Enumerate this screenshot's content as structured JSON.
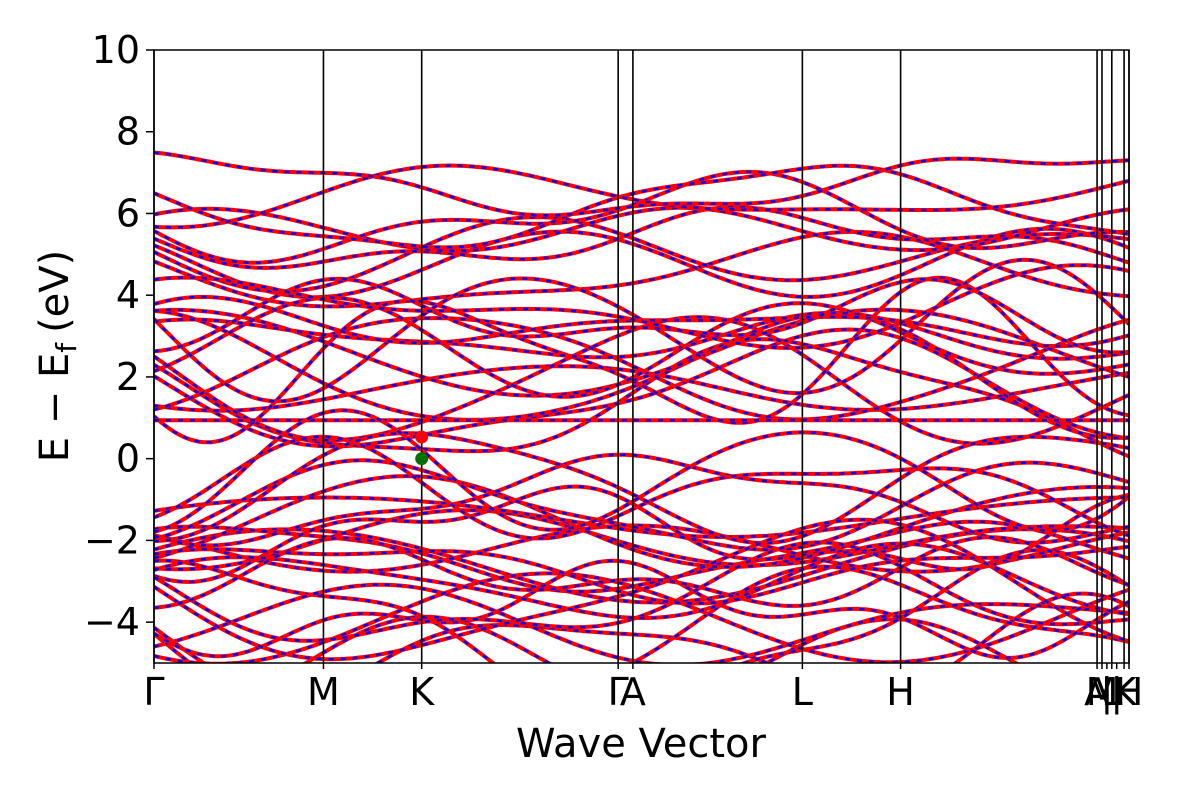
{
  "chart_data": {
    "type": "line",
    "title": "",
    "xlabel": "Wave Vector",
    "ylabel": "E − E",
    "ylabel_subscript": "f",
    "ylabel_unit": "(eV)",
    "ylim": [
      -5,
      10
    ],
    "yticks": [
      {
        "value": -4,
        "label": "−4"
      },
      {
        "value": -2,
        "label": "−2"
      },
      {
        "value": 0,
        "label": "0"
      },
      {
        "value": 2,
        "label": "2"
      },
      {
        "value": 4,
        "label": "4"
      },
      {
        "value": 6,
        "label": "6"
      },
      {
        "value": 8,
        "label": "8"
      },
      {
        "value": 10,
        "label": "10"
      }
    ],
    "xlim": [
      0,
      7.94
    ],
    "kpoints": [
      {
        "label": "Γ",
        "x": 0.0
      },
      {
        "label": "M",
        "x": 1.38
      },
      {
        "label": "K",
        "x": 2.18
      },
      {
        "label": "Γ",
        "x": 3.78
      },
      {
        "label": "A",
        "x": 3.9
      },
      {
        "label": "L",
        "x": 5.28
      },
      {
        "label": "H",
        "x": 6.08
      },
      {
        "label": "A",
        "x": 7.68
      },
      {
        "label": "M",
        "x": 7.72
      },
      {
        "label": "|",
        "x": 7.76
      },
      {
        "label": "L",
        "x": 7.8
      },
      {
        "label": "K",
        "x": 7.9
      },
      {
        "label": "|",
        "x": 7.84
      },
      {
        "label": "H",
        "x": 7.94
      }
    ],
    "series": [
      {
        "style": "solid",
        "color": "#ff0000"
      },
      {
        "style": "dashed",
        "color": "#0000ff"
      }
    ],
    "markers": [
      {
        "x": 2.18,
        "y": 0.53,
        "color": "#ff0000"
      },
      {
        "x": 2.18,
        "y": 0.0,
        "color": "#007000"
      }
    ],
    "grid": false,
    "legend": "none",
    "band_groups": [
      {
        "baseline": 5.6,
        "amplitude": 0.9,
        "count": 9
      },
      {
        "baseline": 2.5,
        "amplitude": 1.1,
        "count": 14
      },
      {
        "baseline": 0.94,
        "amplitude": 0.0,
        "count": 1
      },
      {
        "baseline": -1.5,
        "amplitude": 1.0,
        "count": 12
      },
      {
        "baseline": -3.8,
        "amplitude": 1.2,
        "count": 12
      }
    ]
  }
}
